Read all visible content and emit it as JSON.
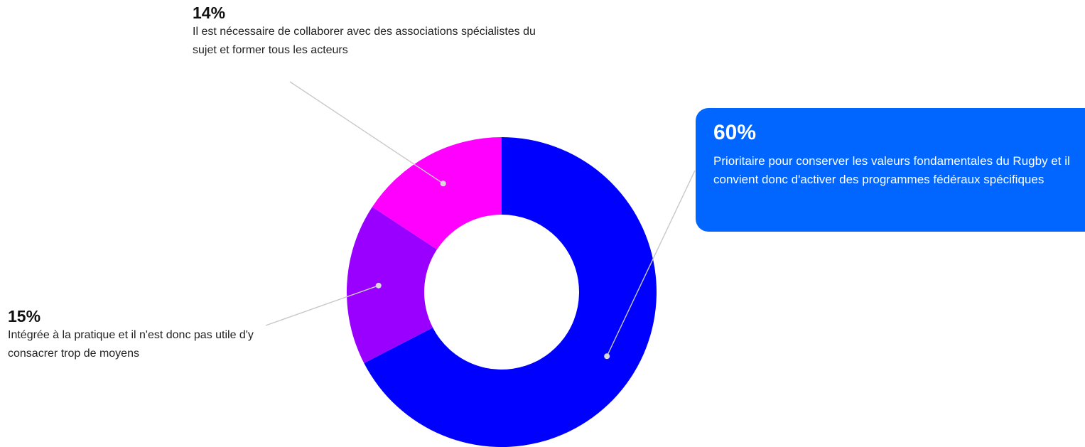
{
  "chart_data": {
    "type": "pie",
    "variant": "donut",
    "slices": [
      {
        "value": 60,
        "label": "60%",
        "text": "Prioritaire pour conserver les valeurs fondamentales du Rugby et il convient donc d'activer des programmes fédéraux spécifiques",
        "color": "#0000ff",
        "highlighted": true
      },
      {
        "value": 15,
        "label": "15%",
        "text": "Intégrée à la pratique et il n'est donc pas utile d'y consacrer trop de moyens",
        "color": "#9900ff"
      },
      {
        "value": 14,
        "label": "14%",
        "text": "Il est nécessaire de collaborer avec des associations spécialistes du sujet et former tous les acteurs",
        "color": "#ff00ff"
      }
    ],
    "highlight_color": "#0066ff",
    "leader_line_color": "#c8c8c8"
  }
}
